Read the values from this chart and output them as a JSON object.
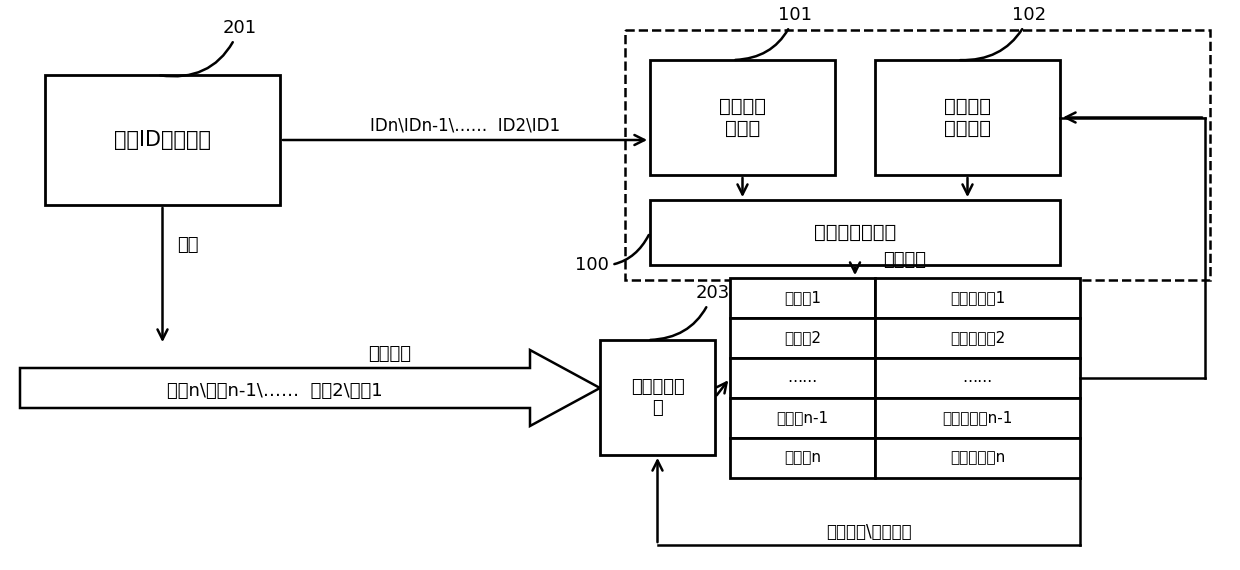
{
  "bg_color": "#ffffff",
  "box_201_label": "物料ID识别装置",
  "box_101_label": "以太网通\n信模块",
  "box_102_label": "路径监控\n通信模块",
  "box_100_label": "检测控制工作站",
  "box_203_label": "路径监控网\n路",
  "label_201": "201",
  "label_101": "101",
  "label_102": "102",
  "label_100": "100",
  "label_203": "203",
  "arrow_id_label": "IDn\\IDn-1\\……  ID2\\ID1",
  "scan_label": "扫描",
  "feed_dir_label": "进料方向",
  "tag_label": "标识n\\标识n-1\\……  标识2\\标识1",
  "synth_label": "合成列表",
  "feed_seq_label": "进料次序\\丢料判断",
  "table_rows": [
    [
      "识别码1",
      "检测状态字1"
    ],
    [
      "识别码2",
      "检测状态字2"
    ],
    [
      "……",
      "……"
    ],
    [
      "识别码n-1",
      "检测状态字n-1"
    ],
    [
      "识别码n",
      "检测状态字n"
    ]
  ]
}
